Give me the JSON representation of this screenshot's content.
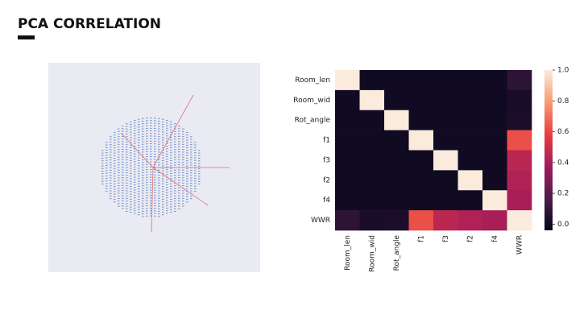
{
  "header": {
    "title": "PCA CORRELATION"
  },
  "chart_data": {
    "type": "heatmap",
    "x": [
      "Room_len",
      "Room_wid",
      "Rot_angle",
      "f1",
      "f3",
      "f2",
      "f4",
      "WWR"
    ],
    "y": [
      "Room_len",
      "Room_wid",
      "Rot_angle",
      "f1",
      "f3",
      "f2",
      "f4",
      "WWR"
    ],
    "values": [
      [
        1,
        0,
        0,
        0,
        0,
        0,
        0,
        0.08
      ],
      [
        0,
        1,
        0,
        0,
        0,
        0,
        0,
        0.02
      ],
      [
        0,
        0,
        1,
        0,
        0,
        0,
        0,
        0.03
      ],
      [
        0,
        0,
        0,
        1,
        0,
        0,
        0,
        0.62
      ],
      [
        0,
        0,
        0,
        0,
        1,
        0,
        0,
        0.45
      ],
      [
        0,
        0,
        0,
        0,
        0,
        1,
        0,
        0.42
      ],
      [
        0,
        0,
        0,
        0,
        0,
        0,
        1,
        0.4
      ],
      [
        0.08,
        0.02,
        0.03,
        0.62,
        0.45,
        0.42,
        0.4,
        1
      ]
    ],
    "colormap": [
      "#03051a",
      "#4c1d4b",
      "#a11a5b",
      "#e83f3f",
      "#f69c73",
      "#faebdd"
    ],
    "clim": [
      -0.04,
      1
    ],
    "cticks": [
      {
        "value": 0,
        "label": "0.0"
      },
      0.2,
      0.4,
      0.6,
      0.8,
      {
        "value": 1,
        "label": "1.0"
      }
    ]
  }
}
